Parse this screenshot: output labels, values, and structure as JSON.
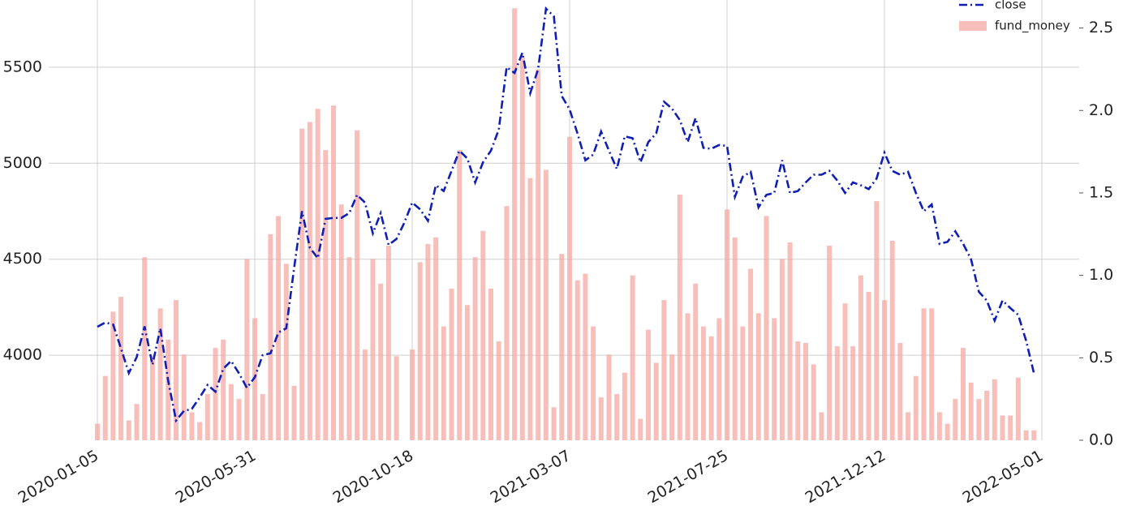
{
  "chart_data": {
    "type": "bar_line",
    "categories": [
      "2020-01-05",
      null,
      null,
      null,
      null,
      null,
      null,
      null,
      null,
      null,
      null,
      null,
      null,
      null,
      null,
      null,
      null,
      null,
      null,
      null,
      "2020-05-31",
      null,
      null,
      null,
      null,
      null,
      null,
      null,
      null,
      null,
      null,
      null,
      null,
      null,
      null,
      null,
      null,
      null,
      null,
      null,
      "2020-10-18",
      null,
      null,
      null,
      null,
      null,
      null,
      null,
      null,
      null,
      null,
      null,
      null,
      null,
      null,
      null,
      null,
      null,
      null,
      null,
      "2021-03-07",
      null,
      null,
      null,
      null,
      null,
      null,
      null,
      null,
      null,
      null,
      null,
      null,
      null,
      null,
      null,
      null,
      null,
      null,
      null,
      "2021-07-25",
      null,
      null,
      null,
      null,
      null,
      null,
      null,
      null,
      null,
      null,
      null,
      null,
      null,
      null,
      null,
      null,
      null,
      null,
      null,
      "2021-12-12",
      null,
      null,
      null,
      null,
      null,
      null,
      null,
      null,
      null,
      null,
      null,
      null,
      null,
      null,
      null,
      null,
      null,
      null,
      null,
      "2022-05-01"
    ],
    "series": [
      {
        "name": "close",
        "type": "line",
        "axis": "y",
        "color": "#0f1fb4",
        "values": [
          4148,
          4170,
          4160,
          4035,
          3907,
          3990,
          4150,
          3950,
          4140,
          3865,
          3660,
          3710,
          3720,
          3780,
          3845,
          3810,
          3930,
          3970,
          3905,
          3830,
          3885,
          4000,
          4010,
          4118,
          4140,
          4455,
          4750,
          4560,
          4505,
          4710,
          4715,
          4715,
          4740,
          4835,
          4795,
          4635,
          4740,
          4575,
          4605,
          4690,
          4795,
          4760,
          4700,
          4885,
          4855,
          4960,
          5065,
          5025,
          4900,
          5005,
          5065,
          5175,
          5500,
          5470,
          5575,
          5365,
          5490,
          5805,
          5765,
          5350,
          5280,
          5155,
          5015,
          5045,
          5165,
          5065,
          4970,
          5140,
          5130,
          5005,
          5110,
          5155,
          5320,
          5285,
          5225,
          5110,
          5235,
          5080,
          5075,
          5095,
          5090,
          4825,
          4930,
          4955,
          4770,
          4835,
          4845,
          5015,
          4845,
          4855,
          4900,
          4940,
          4940,
          4960,
          4910,
          4845,
          4900,
          4885,
          4865,
          4920,
          5055,
          4960,
          4940,
          4955,
          4845,
          4750,
          4785,
          4580,
          4590,
          4645,
          4580,
          4500,
          4330,
          4285,
          4180,
          4285,
          4245,
          4210,
          4075,
          3905,
          null
        ]
      },
      {
        "name": "fund_money",
        "type": "bar",
        "axis": "y2",
        "color": "#f6a9a3",
        "values": [
          0.1,
          0.39,
          0.78,
          0.87,
          0.12,
          0.22,
          1.11,
          0.51,
          0.8,
          0.61,
          0.85,
          0.52,
          0.17,
          0.11,
          0.28,
          0.56,
          0.61,
          0.34,
          0.25,
          1.1,
          0.74,
          0.28,
          1.25,
          1.36,
          1.07,
          0.33,
          1.89,
          1.93,
          2.01,
          1.76,
          2.03,
          1.43,
          1.11,
          1.88,
          0.55,
          1.1,
          0.95,
          1.18,
          0.51,
          0,
          0.55,
          1.08,
          1.19,
          1.23,
          0.69,
          0.92,
          1.76,
          0.82,
          1.11,
          1.27,
          0.92,
          0.6,
          1.42,
          2.62,
          2.32,
          1.59,
          2.25,
          1.64,
          0.2,
          1.13,
          1.84,
          0.97,
          1.01,
          0.69,
          0.26,
          0.52,
          0.28,
          0.41,
          1.0,
          0.13,
          0.67,
          0.47,
          0.85,
          0.52,
          1.49,
          0.77,
          0.95,
          0.69,
          0.63,
          0.74,
          1.4,
          1.23,
          0.69,
          1.04,
          0.77,
          1.36,
          0.74,
          1.1,
          1.2,
          0.6,
          0.59,
          0.46,
          0.17,
          1.18,
          0.57,
          0.83,
          0.57,
          1.0,
          0.9,
          1.45,
          0.85,
          1.21,
          0.59,
          0.17,
          0.39,
          0.8,
          0.8,
          0.17,
          0.1,
          0.25,
          0.56,
          0.35,
          0.25,
          0.3,
          0.37,
          0.15,
          0.15,
          0.38,
          0.06,
          0.06,
          null
        ]
      }
    ],
    "ylim": [
      3557,
      5850
    ],
    "yticks": [
      4000,
      4500,
      5000,
      5500
    ],
    "y2lim": [
      0,
      2.67
    ],
    "y2ticks": [
      {
        "value": 0,
        "label": "0.0"
      },
      0.5,
      {
        "value": 1,
        "label": "1.0"
      },
      1.5,
      {
        "value": 2,
        "label": "2.0"
      },
      2.5
    ],
    "grid": true,
    "legend": "upper right"
  }
}
